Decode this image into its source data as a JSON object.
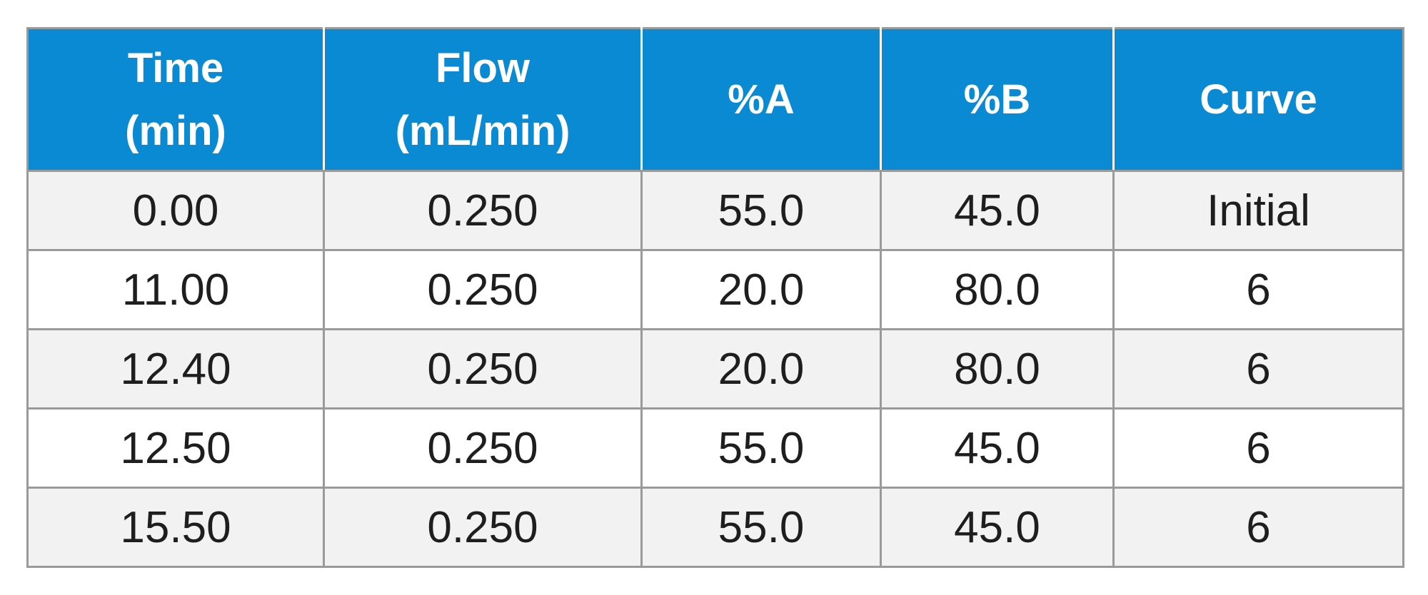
{
  "table": {
    "headers": [
      [
        "Time",
        "(min)"
      ],
      [
        "Flow",
        "(mL/min)"
      ],
      [
        "%A"
      ],
      [
        "%B"
      ],
      [
        "Curve"
      ]
    ],
    "rows": [
      [
        "0.00",
        "0.250",
        "55.0",
        "45.0",
        "Initial"
      ],
      [
        "11.00",
        "0.250",
        "20.0",
        "80.0",
        "6"
      ],
      [
        "12.40",
        "0.250",
        "20.0",
        "80.0",
        "6"
      ],
      [
        "12.50",
        "0.250",
        "55.0",
        "45.0",
        "6"
      ],
      [
        "15.50",
        "0.250",
        "55.0",
        "45.0",
        "6"
      ]
    ]
  },
  "colors": {
    "header_background": "#0a8ad2",
    "header_text": "#ffffff",
    "row_shaded": "#f2f2f3",
    "row_plain": "#ffffff",
    "border": "#9a9a9a",
    "cell_text": "#1e1e1e"
  }
}
